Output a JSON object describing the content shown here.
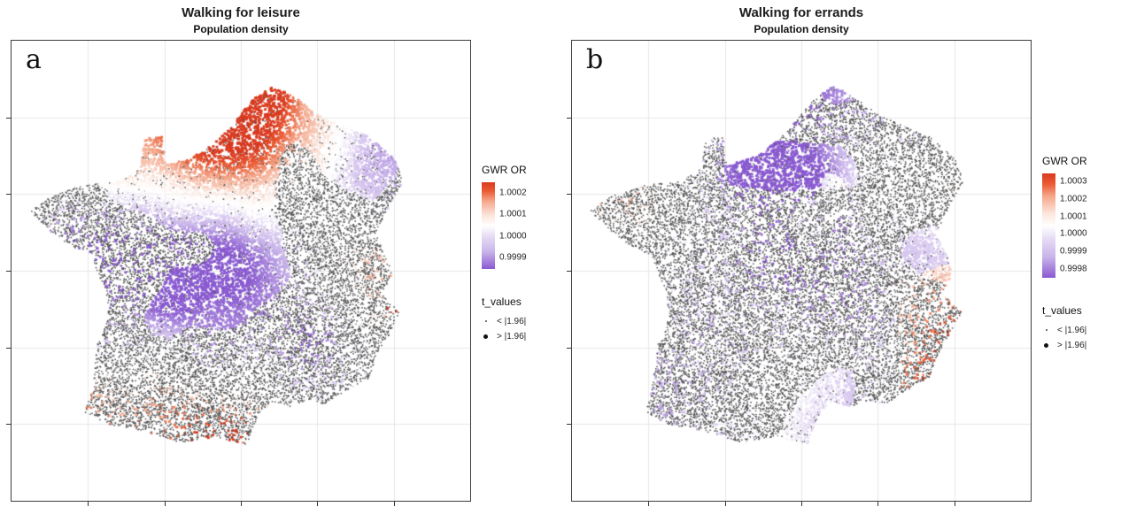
{
  "figure": {
    "panels": [
      {
        "letter": "a",
        "title": "Walking for leisure",
        "subtitle": "Population density",
        "legend": {
          "color_title": "GWR OR",
          "color_ticks": [
            "1.0002",
            "1.0001",
            "1.0000",
            "0.9999"
          ],
          "size_title": "t_values",
          "size_items": [
            {
              "label": "< |1.96|",
              "dot": "small"
            },
            {
              "label": "> |1.96|",
              "dot": "large"
            }
          ]
        },
        "seed": 11,
        "warm_bias": 0.0
      },
      {
        "letter": "b",
        "title": "Walking for errands",
        "subtitle": "Population density",
        "legend": {
          "color_title": "GWR OR",
          "color_ticks": [
            "1.0003",
            "1.0002",
            "1.0001",
            "1.0000",
            "0.9999",
            "0.9998"
          ],
          "size_title": "t_values",
          "size_items": [
            {
              "label": "< |1.96|",
              "dot": "small"
            },
            {
              "label": "> |1.96|",
              "dot": "large"
            }
          ]
        },
        "seed": 47,
        "warm_bias": 0.07
      }
    ],
    "palette": {
      "diverging_stops": [
        [
          0,
          "#8a5ad1"
        ],
        [
          0.2,
          "#c9b4ea"
        ],
        [
          0.38,
          "#e7ddf5"
        ],
        [
          0.5,
          "#ffffff"
        ],
        [
          0.62,
          "#fce4da"
        ],
        [
          0.78,
          "#f5a88c"
        ],
        [
          0.9,
          "#ea5a33"
        ],
        [
          1,
          "#d93a1f"
        ]
      ],
      "dark_point": "#4e4e4e",
      "grid": "#e8e8e8",
      "panel_border": "#3c3c3c",
      "background": "#ffffff"
    },
    "france_outline": [
      [
        0.575,
        0.005
      ],
      [
        0.625,
        0.03
      ],
      [
        0.68,
        0.075
      ],
      [
        0.72,
        0.095
      ],
      [
        0.8,
        0.13
      ],
      [
        0.86,
        0.185
      ],
      [
        0.88,
        0.24
      ],
      [
        0.85,
        0.3
      ],
      [
        0.815,
        0.37
      ],
      [
        0.84,
        0.425
      ],
      [
        0.855,
        0.47
      ],
      [
        0.83,
        0.52
      ],
      [
        0.875,
        0.565
      ],
      [
        0.85,
        0.62
      ],
      [
        0.82,
        0.67
      ],
      [
        0.8,
        0.73
      ],
      [
        0.755,
        0.755
      ],
      [
        0.695,
        0.795
      ],
      [
        0.655,
        0.785
      ],
      [
        0.615,
        0.8
      ],
      [
        0.575,
        0.79
      ],
      [
        0.545,
        0.815
      ],
      [
        0.525,
        0.86
      ],
      [
        0.515,
        0.895
      ],
      [
        0.44,
        0.875
      ],
      [
        0.36,
        0.89
      ],
      [
        0.27,
        0.86
      ],
      [
        0.19,
        0.845
      ],
      [
        0.135,
        0.815
      ],
      [
        0.148,
        0.77
      ],
      [
        0.155,
        0.72
      ],
      [
        0.165,
        0.64
      ],
      [
        0.19,
        0.58
      ],
      [
        0.185,
        0.52
      ],
      [
        0.165,
        0.47
      ],
      [
        0.15,
        0.425
      ],
      [
        0.1,
        0.4
      ],
      [
        0.06,
        0.37
      ],
      [
        0.005,
        0.315
      ],
      [
        0.05,
        0.28
      ],
      [
        0.13,
        0.25
      ],
      [
        0.22,
        0.24
      ],
      [
        0.265,
        0.21
      ],
      [
        0.275,
        0.135
      ],
      [
        0.315,
        0.13
      ],
      [
        0.325,
        0.2
      ],
      [
        0.38,
        0.185
      ],
      [
        0.42,
        0.16
      ],
      [
        0.47,
        0.115
      ],
      [
        0.5,
        0.075
      ],
      [
        0.525,
        0.04
      ]
    ]
  }
}
